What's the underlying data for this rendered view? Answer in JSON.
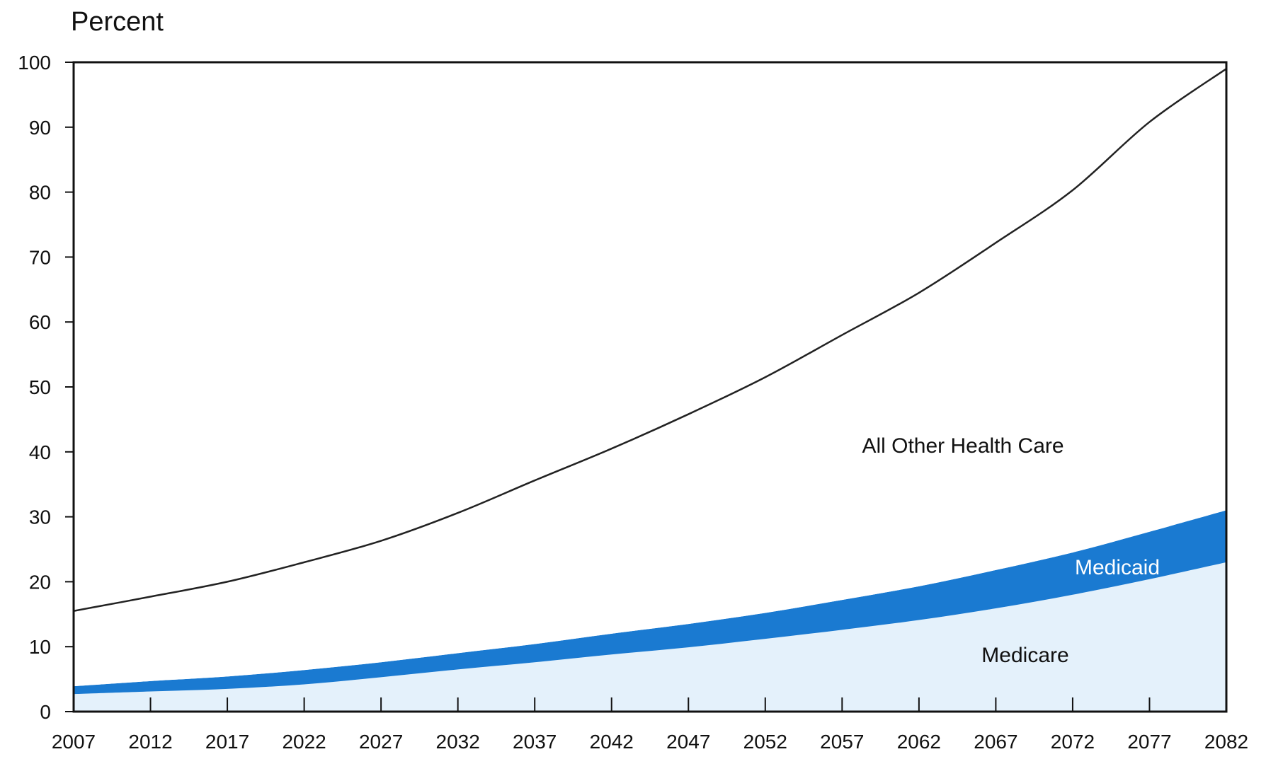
{
  "chart_data": {
    "type": "area",
    "ylabel": "Percent",
    "ylim": [
      0,
      100
    ],
    "yticks": [
      0,
      10,
      20,
      30,
      40,
      50,
      60,
      70,
      80,
      90,
      100
    ],
    "xticks": [
      "2007",
      "2012",
      "2017",
      "2022",
      "2027",
      "2032",
      "2037",
      "2042",
      "2047",
      "2052",
      "2057",
      "2062",
      "2067",
      "2072",
      "2077",
      "2082"
    ],
    "x": [
      2007,
      2012,
      2017,
      2022,
      2027,
      2032,
      2037,
      2042,
      2047,
      2052,
      2057,
      2062,
      2067,
      2072,
      2077,
      2082
    ],
    "stacked": true,
    "grid": false,
    "series": [
      {
        "name": "Medicare",
        "color": "#e4f1fb",
        "values": [
          2.7,
          3.1,
          3.5,
          4.2,
          5.3,
          6.5,
          7.6,
          8.8,
          9.9,
          11.2,
          12.6,
          14.1,
          15.9,
          18.0,
          20.4,
          23.0
        ]
      },
      {
        "name": "Medicaid",
        "color": "#1a7ad1",
        "values": [
          1.2,
          1.6,
          1.9,
          2.2,
          2.3,
          2.5,
          2.8,
          3.2,
          3.6,
          4.0,
          4.6,
          5.2,
          5.9,
          6.5,
          7.3,
          8.0
        ]
      },
      {
        "name": "All Other Health Care",
        "color": "#ffffff",
        "values": [
          11.6,
          13.0,
          14.6,
          16.6,
          18.7,
          21.6,
          25.2,
          28.5,
          32.3,
          36.3,
          40.8,
          45.2,
          50.4,
          55.8,
          63.1,
          68.0
        ]
      }
    ],
    "annotations": [
      "All Other Health Care",
      "Medicaid",
      "Medicare"
    ]
  }
}
